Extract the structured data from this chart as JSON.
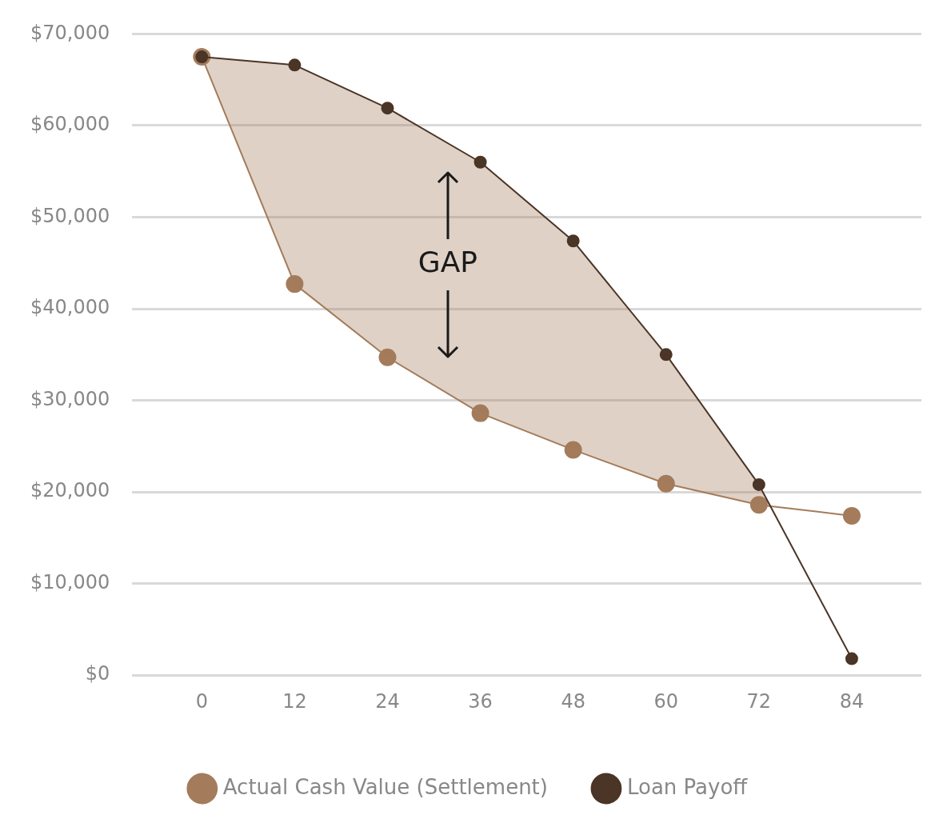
{
  "chart_data": {
    "type": "line",
    "x": [
      0,
      12,
      24,
      36,
      48,
      60,
      72,
      84
    ],
    "series": [
      {
        "name": "Actual Cash Value (Settlement)",
        "color": "#a47c5b",
        "values": [
          67500,
          42700,
          34700,
          28600,
          24600,
          20900,
          18600,
          17400
        ]
      },
      {
        "name": "Loan Payoff",
        "color": "#4a3526",
        "type": "area",
        "values": [
          67500,
          66600,
          61900,
          56000,
          47400,
          35000,
          20800,
          1800
        ]
      }
    ],
    "xlim": [
      -9,
      93
    ],
    "xticks": [
      0,
      12,
      24,
      36,
      48,
      60,
      72,
      84
    ],
    "ylim": [
      0,
      70000
    ],
    "yticks": [
      {
        "value": 0,
        "label": "$0"
      },
      {
        "value": 10000,
        "label": "$10,000"
      },
      {
        "value": 20000,
        "label": "$20,000"
      },
      {
        "value": 30000,
        "label": "$30,000"
      },
      {
        "value": 40000,
        "label": "$40,000"
      },
      {
        "value": 50000,
        "label": "$50,000"
      },
      {
        "value": 60000,
        "label": "$60,000"
      },
      {
        "value": 70000,
        "label": "$70,000"
      }
    ],
    "grid": "y",
    "legend": "bottom",
    "marker": "circle",
    "line_style": "solid",
    "annotations": [
      "GAP"
    ]
  }
}
